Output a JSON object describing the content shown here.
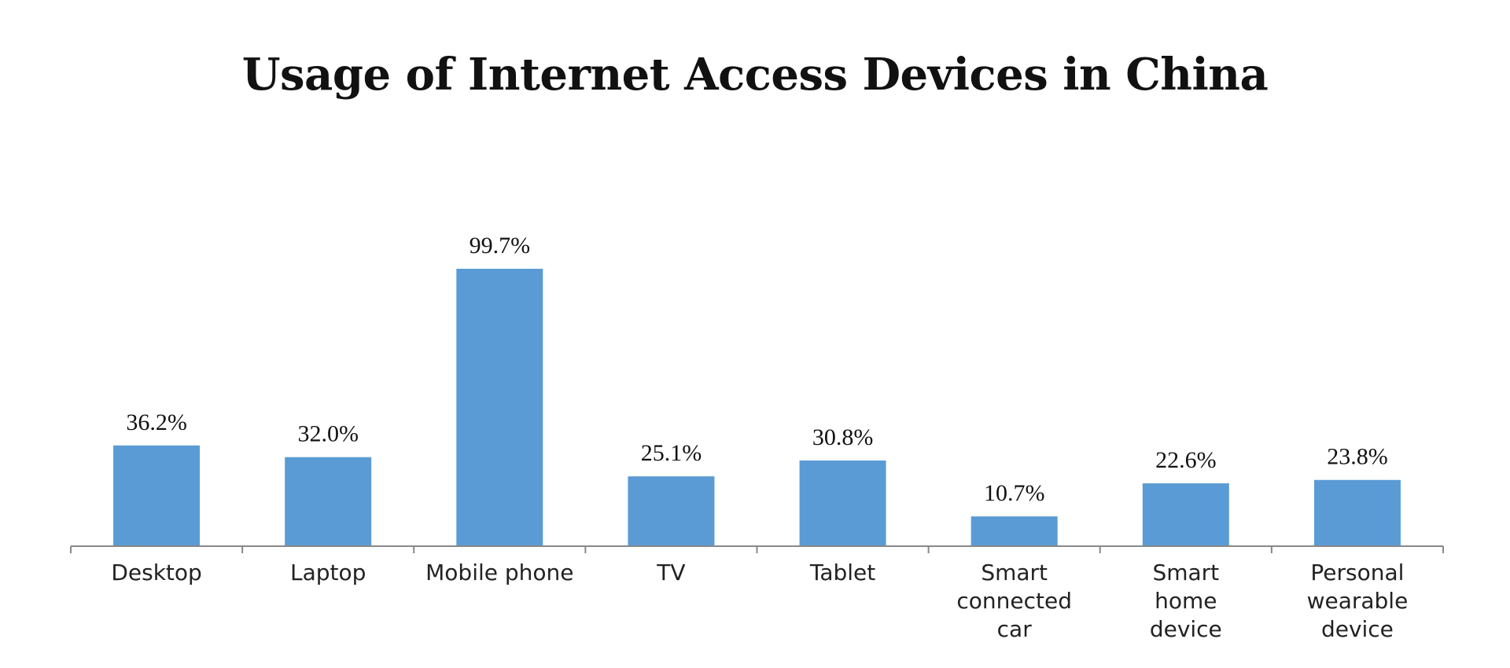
{
  "chart_data": {
    "type": "bar",
    "title": "Usage of Internet Access Devices in China",
    "categories": [
      [
        "Desktop"
      ],
      [
        "Laptop"
      ],
      [
        "Mobile phone"
      ],
      [
        "TV"
      ],
      [
        "Tablet"
      ],
      [
        "Smart",
        "connected",
        "car"
      ],
      [
        "Smart",
        "home",
        "device"
      ],
      [
        "Personal",
        "wearable",
        "device"
      ]
    ],
    "values": [
      36.2,
      32.0,
      99.7,
      25.1,
      30.8,
      10.7,
      22.6,
      23.8
    ],
    "value_labels": [
      "36.2%",
      "32.0%",
      "99.7%",
      "25.1%",
      "30.8%",
      "10.7%",
      "22.6%",
      "23.8%"
    ],
    "bar_color": "#5b9bd5",
    "axis_color": "#888888",
    "ylim": [
      0,
      100
    ],
    "grid": false,
    "legend": "none"
  }
}
